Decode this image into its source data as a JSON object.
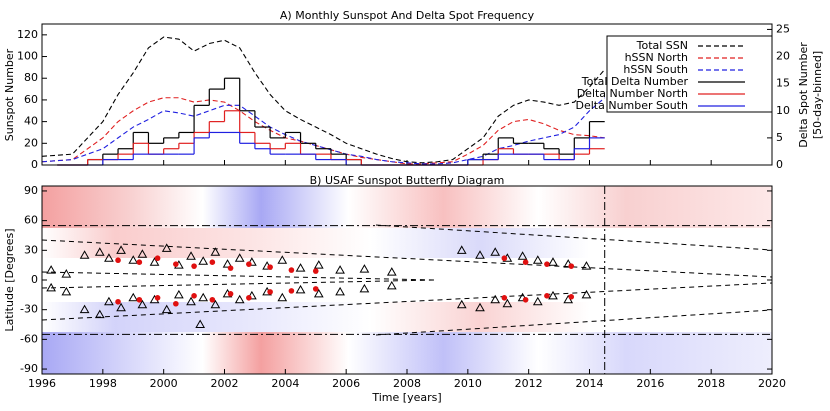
{
  "chart_data": [
    {
      "type": "line",
      "title": "A) Monthly Sunspot And Delta Spot Frequency",
      "ylabel": "Sunspot Number",
      "y2label": [
        "Delta Spot Number",
        "[50-day-binned]"
      ],
      "xlim": [
        1996,
        2020
      ],
      "ylim": [
        0,
        130
      ],
      "yticks": [
        0,
        20,
        40,
        60,
        80,
        100,
        120
      ],
      "y2lim": [
        0,
        26
      ],
      "y2ticks": [
        0,
        5,
        10,
        15,
        20,
        25
      ],
      "x": [
        1996,
        1997,
        1998,
        1998.5,
        1999,
        1999.5,
        2000,
        2000.5,
        2001,
        2001.5,
        2002,
        2002.5,
        2003,
        2003.5,
        2004,
        2004.5,
        2005,
        2005.5,
        2006,
        2006.5,
        2007,
        2007.5,
        2008,
        2008.5,
        2009,
        2009.5,
        2010,
        2010.5,
        2011,
        2011.5,
        2012,
        2012.5,
        2013,
        2013.5,
        2014,
        2014.5
      ],
      "bins": [
        1996.5,
        1997,
        1997.5,
        1998,
        1998.5,
        1999,
        1999.5,
        2000,
        2000.5,
        2001,
        2001.5,
        2002,
        2002.5,
        2003,
        2003.5,
        2004,
        2004.5,
        2005,
        2005.5,
        2006,
        2006.5,
        2007,
        2007.5,
        2008,
        2008.5,
        2009,
        2009.5,
        2010,
        2010.5,
        2011,
        2011.5,
        2012,
        2012.5,
        2013,
        2013.5,
        2014,
        2014.5
      ],
      "series": [
        {
          "name": "Total SSN",
          "color": "#000000",
          "style": "dashed",
          "values": [
            8,
            10,
            40,
            65,
            85,
            108,
            118,
            116,
            105,
            112,
            115,
            108,
            85,
            65,
            50,
            42,
            35,
            28,
            20,
            15,
            10,
            6,
            3,
            2,
            3,
            5,
            15,
            25,
            45,
            55,
            60,
            58,
            55,
            58,
            72,
            88
          ]
        },
        {
          "name": "hSSN North",
          "color": "#e02020",
          "style": "dashed",
          "values": [
            3,
            5,
            25,
            40,
            50,
            58,
            62,
            62,
            58,
            60,
            58,
            50,
            40,
            32,
            25,
            22,
            18,
            14,
            10,
            7,
            5,
            3,
            1,
            1,
            2,
            3,
            10,
            18,
            32,
            40,
            42,
            38,
            32,
            28,
            27,
            25
          ]
        },
        {
          "name": "hSSN South",
          "color": "#2020e0",
          "style": "dashed",
          "values": [
            3,
            5,
            15,
            25,
            35,
            42,
            50,
            48,
            45,
            50,
            55,
            55,
            45,
            35,
            28,
            22,
            18,
            14,
            10,
            8,
            5,
            3,
            2,
            1,
            1,
            2,
            5,
            8,
            15,
            18,
            22,
            25,
            28,
            35,
            50,
            62
          ]
        },
        {
          "name": "Total Delta Number",
          "color": "#000000",
          "style": "step",
          "axis": "y2",
          "values": [
            0,
            0,
            1,
            2,
            3,
            6,
            4,
            5,
            6,
            11,
            14,
            16,
            10,
            7,
            5,
            6,
            4,
            3,
            2,
            1,
            0,
            0,
            0,
            0,
            0,
            0,
            0,
            1,
            2,
            5,
            4,
            4,
            3,
            2,
            5,
            8
          ]
        },
        {
          "name": "Delta Number North",
          "color": "#e02020",
          "style": "step",
          "axis": "y2",
          "values": [
            0,
            0,
            1,
            1,
            2,
            4,
            2,
            3,
            4,
            6,
            8,
            10,
            6,
            4,
            3,
            4,
            2,
            2,
            1,
            1,
            0,
            0,
            0,
            0,
            0,
            0,
            0,
            0,
            1,
            3,
            2,
            2,
            2,
            1,
            2,
            3
          ]
        },
        {
          "name": "Delta Number South",
          "color": "#2020e0",
          "style": "step",
          "axis": "y2",
          "values": [
            0,
            0,
            0,
            1,
            1,
            2,
            2,
            2,
            2,
            5,
            6,
            6,
            4,
            3,
            2,
            2,
            2,
            1,
            1,
            0,
            0,
            0,
            0,
            0,
            0,
            0,
            0,
            1,
            1,
            2,
            2,
            2,
            1,
            1,
            3,
            5
          ]
        }
      ]
    },
    {
      "type": "scatter",
      "title": "B) USAF Sunspot Butterfly Diagram",
      "xlabel": "Time [years]",
      "ylabel": "Latitude [Degrees]",
      "xlim": [
        1996,
        2020
      ],
      "xticks": [
        1996,
        1998,
        2000,
        2002,
        2004,
        2006,
        2008,
        2010,
        2012,
        2014,
        2016,
        2018,
        2020
      ],
      "ylim": [
        -95,
        95
      ],
      "yticks": [
        -90,
        -60,
        -30,
        0,
        30,
        60,
        90
      ],
      "series": [
        {
          "marker": "triangle",
          "color": "#000000",
          "x": [
            1996.3,
            1996.8,
            1997.4,
            1997.9,
            1998.2,
            1998.6,
            1999.0,
            1999.3,
            1999.7,
            2000.1,
            2000.5,
            2000.9,
            2001.3,
            2001.7,
            2002.1,
            2002.5,
            2002.9,
            2003.4,
            2003.9,
            2004.5,
            2005.1,
            2005.8,
            2006.6,
            2007.5,
            2009.8,
            2010.4,
            2010.9,
            2011.3,
            2011.8,
            2012.3,
            2012.8,
            2013.3,
            2013.9,
            1996.3,
            1996.8,
            1997.4,
            1997.9,
            1998.2,
            1998.6,
            1999.0,
            1999.3,
            1999.7,
            2000.1,
            2000.5,
            2000.9,
            2001.3,
            2001.7,
            2002.1,
            2002.5,
            2002.9,
            2003.4,
            2003.9,
            2004.5,
            2005.1,
            2005.8,
            2006.6,
            2007.5,
            2009.8,
            2010.4,
            2010.9,
            2011.3,
            2011.8,
            2012.3,
            2012.8,
            2013.3,
            2013.9,
            2001.2
          ],
          "y": [
            10,
            6,
            25,
            28,
            22,
            30,
            20,
            26,
            18,
            32,
            15,
            24,
            19,
            28,
            16,
            22,
            18,
            14,
            20,
            12,
            15,
            10,
            11,
            8,
            30,
            25,
            28,
            22,
            24,
            20,
            18,
            16,
            14,
            -8,
            -12,
            -30,
            -35,
            -22,
            -28,
            -18,
            -25,
            -20,
            -30,
            -15,
            -22,
            -18,
            -25,
            -14,
            -20,
            -16,
            -12,
            -18,
            -10,
            -14,
            -12,
            -9,
            -6,
            -25,
            -28,
            -20,
            -24,
            -18,
            -22,
            -16,
            -20,
            -15,
            -45
          ]
        },
        {
          "marker": "dot",
          "color": "#e01010",
          "x": [
            1998.5,
            1999.2,
            1999.8,
            2000.4,
            2001.0,
            2001.6,
            2002.2,
            2002.8,
            2003.5,
            2004.2,
            2005.0,
            2011.2,
            2011.9,
            2012.6,
            2013.4,
            1998.5,
            1999.2,
            1999.8,
            2000.4,
            2001.0,
            2001.6,
            2002.2,
            2002.8,
            2003.5,
            2004.2,
            2005.0,
            2011.2,
            2011.9,
            2012.6,
            2013.4
          ],
          "y": [
            20,
            18,
            22,
            16,
            14,
            18,
            12,
            16,
            13,
            10,
            9,
            22,
            18,
            16,
            14,
            -22,
            -20,
            -18,
            -24,
            -16,
            -20,
            -14,
            -18,
            -12,
            -11,
            -9,
            -18,
            -20,
            -16,
            -17
          ]
        }
      ]
    }
  ]
}
